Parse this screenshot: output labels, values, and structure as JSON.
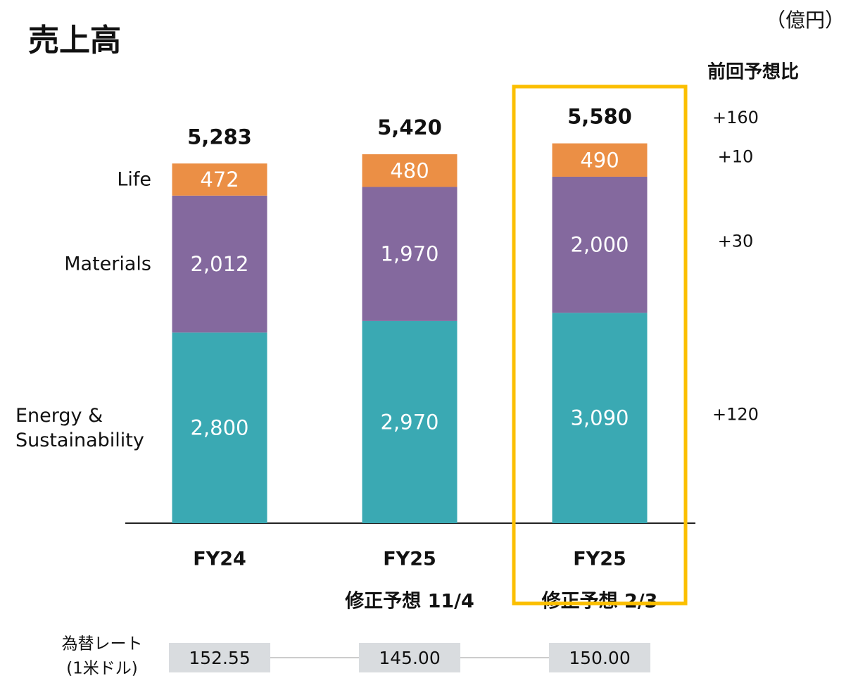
{
  "chart_data": {
    "type": "stacked_bar",
    "title": "売上高",
    "unit": "（億円）",
    "categories": [
      "FY24",
      "FY25",
      "FY25"
    ],
    "category_notes": [
      null,
      "修正予想 11/4",
      "修正予想 2/3"
    ],
    "series": [
      {
        "name": "Energy & Sustainability",
        "color": "#3aa9b3",
        "values": [
          2800,
          2970,
          3090
        ],
        "value_labels": [
          "2,800",
          "2,970",
          "3,090"
        ]
      },
      {
        "name": "Materials",
        "color": "#84699e",
        "values": [
          2012,
          1970,
          2000
        ],
        "value_labels": [
          "2,012",
          "1,970",
          "2,000"
        ]
      },
      {
        "name": "Life",
        "color": "#eb8f45",
        "values": [
          472,
          480,
          490
        ],
        "value_labels": [
          "472",
          "480",
          "490"
        ]
      }
    ],
    "totals": [
      5283,
      5420,
      5580
    ],
    "total_labels": [
      "5,283",
      "5,420",
      "5,580"
    ],
    "ylim": [
      0,
      6000
    ],
    "highlight_index": 2,
    "highlight_color": "#fbbf00",
    "prev_forecast_diff": {
      "title": "前回予想比",
      "values": [
        120,
        30,
        10
      ],
      "value_labels": [
        "+120",
        "+30",
        "+10"
      ],
      "total": 160,
      "total_label": "+160"
    },
    "fx_rate": {
      "label": [
        "為替レート",
        "(1米ドル)"
      ],
      "values": [
        152.55,
        145.0,
        150.0
      ],
      "value_labels": [
        "152.55",
        "145.00",
        "150.00"
      ]
    }
  }
}
